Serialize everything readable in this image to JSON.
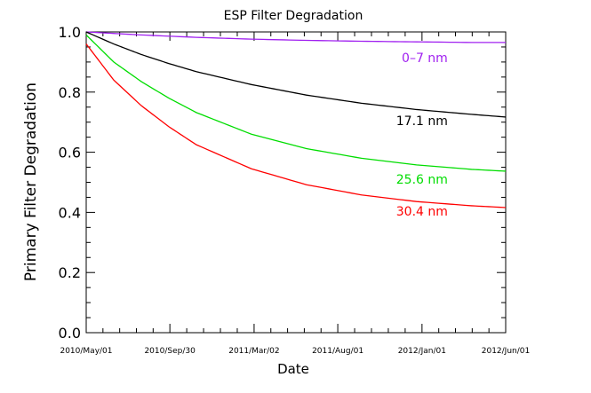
{
  "chart_data": {
    "type": "line",
    "title": "ESP Filter Degradation",
    "xlabel": "Date",
    "ylabel": "Primary Filter Degradation",
    "x_tick_labels": [
      "2010/May/01",
      "2010/Sep/30",
      "2011/Mar/02",
      "2011/Aug/01",
      "2012/Jan/01",
      "2012/Jun/01"
    ],
    "y_ticks": [
      0.0,
      0.2,
      0.4,
      0.6,
      0.8,
      1.0
    ],
    "y_tick_labels": [
      "0.0",
      "0.2",
      "0.4",
      "0.6",
      "0.8",
      "1.0"
    ],
    "ylim": [
      0.0,
      1.0
    ],
    "x_days_range": [
      0,
      762
    ],
    "x_tick_days": [
      0,
      152,
      305,
      457,
      610,
      762
    ],
    "grid": false,
    "series": [
      {
        "name": "0-7 nm",
        "label": "0–7 nm",
        "color": "#a020f0",
        "x": [
          0,
          50,
          100,
          200,
          300,
          400,
          500,
          600,
          700,
          762
        ],
        "values": [
          1.0,
          0.995,
          0.99,
          0.982,
          0.976,
          0.972,
          0.969,
          0.967,
          0.965,
          0.965
        ]
      },
      {
        "name": "17.1 nm",
        "label": "17.1 nm",
        "color": "#000000",
        "x": [
          0,
          50,
          100,
          150,
          200,
          300,
          400,
          500,
          600,
          700,
          762
        ],
        "values": [
          1.0,
          0.96,
          0.925,
          0.895,
          0.868,
          0.825,
          0.79,
          0.763,
          0.742,
          0.726,
          0.717
        ]
      },
      {
        "name": "25.6 nm",
        "label": "25.6 nm",
        "color": "#00dd00",
        "x": [
          0,
          50,
          100,
          150,
          200,
          300,
          400,
          500,
          600,
          700,
          762
        ],
        "values": [
          0.99,
          0.9,
          0.835,
          0.78,
          0.732,
          0.66,
          0.612,
          0.58,
          0.558,
          0.543,
          0.537
        ]
      },
      {
        "name": "30.4 nm",
        "label": "30.4 nm",
        "color": "#ff0000",
        "x": [
          0,
          50,
          100,
          150,
          200,
          300,
          400,
          500,
          600,
          700,
          762
        ],
        "values": [
          0.96,
          0.84,
          0.755,
          0.685,
          0.625,
          0.545,
          0.492,
          0.458,
          0.436,
          0.422,
          0.416
        ]
      }
    ]
  }
}
